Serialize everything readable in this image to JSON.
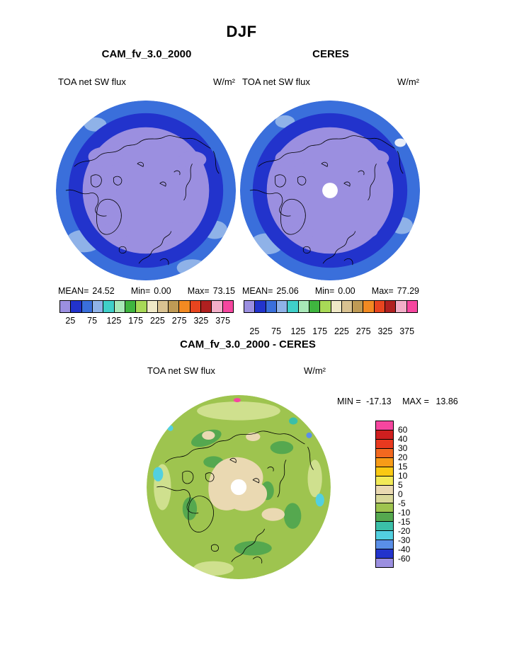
{
  "title": "DJF",
  "top": {
    "left": {
      "panel_title": "CAM_fv_3.0_2000",
      "field": "TOA net SW flux",
      "units": "W/m²",
      "mean_label": "MEAN=",
      "mean": "24.52",
      "min_label": "Min=",
      "min": "0.00",
      "max_label": "Max=",
      "max": "73.15"
    },
    "right": {
      "panel_title": "CERES",
      "field": "TOA net SW flux",
      "units": "W/m²",
      "mean_label": "MEAN=",
      "mean": "25.06",
      "min_label": "Min=",
      "min": "0.00",
      "max_label": "Max=",
      "max": "77.29"
    }
  },
  "bottom": {
    "panel_title": "CAM_fv_3.0_2000 - CERES",
    "field": "TOA net SW flux",
    "units": "W/m²",
    "min_label": "MIN =",
    "min": "-17.13",
    "max_label": "MAX =",
    "max": "13.86"
  },
  "chart_data": [
    {
      "type": "heatmap",
      "panel": "left",
      "title": "CAM_fv_3.0_2000",
      "season": "DJF",
      "field": "TOA net SW flux",
      "units": "W/m²",
      "projection": "polar-stereographic-north",
      "stats": {
        "mean": 24.52,
        "min": 0.0,
        "max": 73.15
      },
      "colorbar": {
        "orientation": "horizontal",
        "range": [
          0,
          400
        ],
        "interval": 25,
        "ticks": [
          25,
          75,
          125,
          175,
          225,
          275,
          325,
          375
        ],
        "colors": [
          "#9b8fe0",
          "#2233cc",
          "#3a6fdb",
          "#8fb2e8",
          "#3fcfc8",
          "#a8e8b8",
          "#3fb53f",
          "#a8d957",
          "#efe8c6",
          "#d9c291",
          "#bf9a55",
          "#f28a22",
          "#e8451f",
          "#b02020",
          "#f2aec8",
          "#f6469f"
        ]
      }
    },
    {
      "type": "heatmap",
      "panel": "right",
      "title": "CERES",
      "season": "DJF",
      "field": "TOA net SW flux",
      "units": "W/m²",
      "projection": "polar-stereographic-north",
      "stats": {
        "mean": 25.06,
        "min": 0.0,
        "max": 77.29
      },
      "colorbar": {
        "orientation": "horizontal",
        "range": [
          0,
          400
        ],
        "interval": 25,
        "ticks": [
          25,
          75,
          125,
          175,
          225,
          275,
          325,
          375
        ],
        "colors": [
          "#9b8fe0",
          "#2233cc",
          "#3a6fdb",
          "#8fb2e8",
          "#3fcfc8",
          "#a8e8b8",
          "#3fb53f",
          "#a8d957",
          "#efe8c6",
          "#d9c291",
          "#bf9a55",
          "#f28a22",
          "#e8451f",
          "#b02020",
          "#f2aec8",
          "#f6469f"
        ]
      }
    },
    {
      "type": "heatmap",
      "panel": "difference",
      "title": "CAM_fv_3.0_2000 - CERES",
      "season": "DJF",
      "field": "TOA net SW flux",
      "units": "W/m²",
      "projection": "polar-stereographic-north",
      "stats": {
        "min": -17.13,
        "max": 13.86
      },
      "colorbar": {
        "orientation": "vertical",
        "ticks": [
          60,
          40,
          30,
          20,
          15,
          10,
          5,
          0,
          -5,
          -10,
          -15,
          -20,
          -30,
          -40,
          -60
        ],
        "colors": [
          "#f6469f",
          "#cf1f1f",
          "#e8391f",
          "#f2681f",
          "#f79b17",
          "#fac913",
          "#f2ea57",
          "#ead9b2",
          "#d9d89a",
          "#9ec44f",
          "#55a84f",
          "#3bbfa8",
          "#52d0e0",
          "#5a8fe8",
          "#2233cc",
          "#9b8fe0"
        ]
      }
    }
  ]
}
